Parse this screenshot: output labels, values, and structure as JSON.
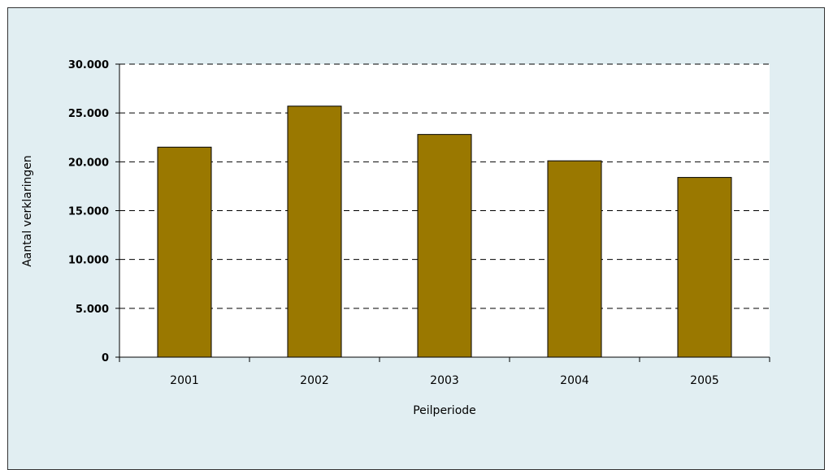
{
  "chart_data": {
    "type": "bar",
    "categories": [
      "2001",
      "2002",
      "2003",
      "2004",
      "2005"
    ],
    "values": [
      21500,
      25700,
      22800,
      20100,
      18400
    ],
    "xlabel": "Peilperiode",
    "ylabel": "Aantal verklaringen",
    "ylim": [
      0,
      30000
    ],
    "yticks": [
      0,
      5000,
      10000,
      15000,
      20000,
      25000,
      30000
    ],
    "ytick_labels": [
      "0",
      "5.000",
      "10.000",
      "15.000",
      "20.000",
      "25.000",
      "30.000"
    ],
    "grid": "horizontal dashed",
    "legend": "none",
    "colors": {
      "bar": "#9a7800",
      "plot_background": "#ffffff",
      "frame_background": "#e1eef2"
    }
  }
}
